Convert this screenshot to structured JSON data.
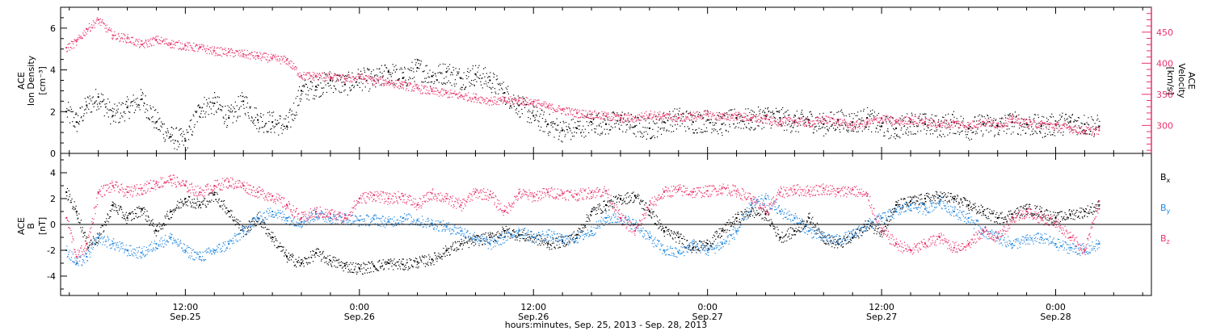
{
  "x_axis": {
    "title": "hours:minutes, Sep. 25, 2013 - Sep. 28, 2013",
    "ticks": [
      {
        "t": 12,
        "time": "12:00",
        "date": "Sep.25"
      },
      {
        "t": 24,
        "time": "0:00",
        "date": "Sep.26"
      },
      {
        "t": 36,
        "time": "12:00",
        "date": "Sep.26"
      },
      {
        "t": 48,
        "time": "0:00",
        "date": "Sep.27"
      },
      {
        "t": 60,
        "time": "12:00",
        "date": "Sep.27"
      },
      {
        "t": 72,
        "time": "0:00",
        "date": "Sep.28"
      }
    ],
    "range_hours": [
      3.4,
      78.6
    ]
  },
  "panel1": {
    "left_label_1": "ACE",
    "left_label_2": "Ion Density",
    "left_unit": "[cm⁻³]",
    "right_label_1": "ACE",
    "right_label_2": "Velocity",
    "right_unit": "[km/s]",
    "left_ticks": [
      "0",
      "2",
      "4",
      "6"
    ],
    "right_ticks": [
      "300",
      "350",
      "400",
      "450"
    ]
  },
  "panel2": {
    "label_1": "ACE",
    "label_2": "B",
    "unit": "[nT]",
    "ticks": [
      "-4",
      "-2",
      "0",
      "2",
      "4"
    ],
    "legend": [
      "Bx",
      "By",
      "Bz"
    ]
  },
  "colors": {
    "density": "#000000",
    "velocity": "#e8336a",
    "bx": "#000000",
    "by": "#1f86e0",
    "bz": "#e8336a",
    "axis": "#000000"
  },
  "chart_data": [
    {
      "type": "scatter",
      "title": "",
      "x_unit": "hours since 2013-09-25 00:00",
      "series": [
        {
          "name": "Ion Density",
          "axis": "left",
          "x": [
            3.8,
            4.5,
            5.2,
            6.0,
            7.0,
            8.0,
            9.0,
            10.0,
            11.0,
            12.0,
            13.0,
            14.0,
            15.0,
            16.0,
            17.0,
            18.0,
            19.0,
            20.0,
            21.0,
            22.0,
            23.0,
            24.0,
            25.0,
            26.0,
            27.0,
            28.0,
            29.0,
            30.0,
            31.0,
            32.0,
            33.0,
            34.0,
            35.0,
            36.0,
            37.0,
            38.0,
            39.0,
            40.0,
            41.0,
            42.0,
            43.0,
            44.0,
            45.0,
            46.0,
            47.0,
            48.0,
            49.0,
            50.0,
            51.0,
            52.0,
            53.0,
            54.0,
            55.0,
            56.0,
            57.0,
            58.0,
            59.0,
            60.0,
            61.0,
            62.0,
            63.0,
            64.0,
            65.0,
            66.0,
            67.0,
            68.0,
            69.0,
            70.0,
            71.0,
            72.0,
            73.0,
            74.0,
            75.0
          ],
          "y": [
            2.0,
            1.5,
            2.3,
            2.7,
            1.8,
            2.2,
            2.6,
            1.5,
            0.8,
            0.6,
            2.2,
            2.4,
            1.7,
            2.5,
            1.6,
            1.5,
            1.3,
            3.0,
            3.2,
            3.5,
            3.3,
            3.6,
            3.5,
            3.9,
            3.6,
            4.1,
            3.7,
            3.9,
            3.6,
            3.8,
            3.5,
            2.9,
            2.3,
            1.8,
            1.4,
            1.1,
            1.2,
            1.5,
            1.4,
            1.6,
            1.3,
            1.2,
            1.5,
            1.7,
            1.5,
            1.6,
            1.4,
            1.7,
            1.6,
            1.8,
            1.7,
            1.5,
            1.6,
            1.4,
            1.6,
            1.5,
            1.7,
            1.3,
            1.2,
            1.5,
            1.4,
            1.3,
            1.5,
            1.2,
            1.4,
            1.3,
            1.5,
            1.4,
            1.3,
            1.4,
            1.5,
            1.4,
            1.3
          ]
        },
        {
          "name": "Velocity",
          "axis": "right",
          "x": [
            3.8,
            4.5,
            5.2,
            6.0,
            7.0,
            8.0,
            9.0,
            10.0,
            11.0,
            12.0,
            13.0,
            14.0,
            15.0,
            16.0,
            17.0,
            18.0,
            19.0,
            20.0,
            21.0,
            22.0,
            23.0,
            24.0,
            25.0,
            26.0,
            27.0,
            28.0,
            29.0,
            30.0,
            31.0,
            32.0,
            33.0,
            34.0,
            35.0,
            36.0,
            37.0,
            38.0,
            39.0,
            40.0,
            41.0,
            42.0,
            43.0,
            44.0,
            45.0,
            46.0,
            47.0,
            48.0,
            49.0,
            50.0,
            51.0,
            52.0,
            53.0,
            54.0,
            55.0,
            56.0,
            57.0,
            58.0,
            59.0,
            60.0,
            61.0,
            62.0,
            63.0,
            64.0,
            65.0,
            66.0,
            67.0,
            68.0,
            69.0,
            70.0,
            71.0,
            72.0,
            73.0,
            74.0,
            75.0
          ],
          "y": [
            425,
            435,
            455,
            470,
            445,
            440,
            430,
            438,
            432,
            428,
            425,
            420,
            418,
            415,
            412,
            408,
            405,
            380,
            380,
            378,
            375,
            378,
            372,
            370,
            365,
            360,
            355,
            352,
            348,
            345,
            340,
            340,
            340,
            338,
            330,
            325,
            320,
            318,
            315,
            312,
            312,
            318,
            315,
            312,
            316,
            318,
            314,
            316,
            312,
            310,
            306,
            308,
            304,
            310,
            306,
            300,
            305,
            312,
            306,
            310,
            306,
            302,
            304,
            300,
            306,
            302,
            310,
            304,
            302,
            300,
            296,
            292,
            292
          ]
        }
      ],
      "left_axis": {
        "label": "ACE Ion Density",
        "unit": "[cm⁻³]",
        "ylim": [
          0,
          7
        ]
      },
      "right_axis": {
        "label": "ACE Velocity",
        "unit": "[km/s]",
        "ylim": [
          255,
          490
        ]
      }
    },
    {
      "type": "scatter",
      "title": "",
      "x_unit": "hours since 2013-09-25 00:00",
      "ylabel": "ACE B [nT]",
      "ylim": [
        -5.5,
        5.5
      ],
      "series": [
        {
          "name": "Bx",
          "x": [
            3.8,
            4.5,
            5.2,
            6.0,
            7.0,
            8.0,
            9.0,
            10.0,
            11.0,
            12.0,
            13.0,
            14.0,
            15.0,
            16.0,
            17.0,
            18.0,
            19.0,
            20.0,
            21.0,
            22.0,
            23.0,
            24.0,
            25.0,
            26.0,
            27.0,
            28.0,
            29.0,
            30.0,
            31.0,
            32.0,
            33.0,
            34.0,
            35.0,
            36.0,
            37.0,
            38.0,
            39.0,
            40.0,
            41.0,
            42.0,
            43.0,
            44.0,
            45.0,
            46.0,
            47.0,
            48.0,
            49.0,
            50.0,
            51.0,
            52.0,
            53.0,
            54.0,
            55.0,
            56.0,
            57.0,
            58.0,
            59.0,
            60.0,
            61.0,
            62.0,
            63.0,
            64.0,
            65.0,
            66.0,
            67.0,
            68.0,
            69.0,
            70.0,
            71.0,
            72.0,
            73.0,
            74.0,
            75.0
          ],
          "y": [
            2.5,
            1.0,
            -1.5,
            -1.0,
            1.5,
            0.5,
            1.2,
            -0.5,
            1.0,
            2.0,
            1.5,
            2.3,
            1.0,
            -0.5,
            0.5,
            -1.0,
            -2.5,
            -3.0,
            -2.2,
            -2.8,
            -3.2,
            -3.4,
            -3.2,
            -3.0,
            -3.1,
            -2.9,
            -2.7,
            -2.0,
            -1.5,
            -1.2,
            -1.0,
            -0.5,
            -0.8,
            -1.0,
            -1.5,
            -1.3,
            -0.8,
            1.0,
            1.5,
            2.0,
            2.2,
            1.0,
            -0.5,
            -1.0,
            -1.8,
            -1.5,
            -0.5,
            0.5,
            1.0,
            0.8,
            -1.0,
            -0.5,
            0.5,
            -1.0,
            -1.5,
            -1.0,
            0.0,
            -0.5,
            1.5,
            1.8,
            2.0,
            2.2,
            2.0,
            1.5,
            1.0,
            0.5,
            0.8,
            1.2,
            1.0,
            0.5,
            0.8,
            1.0,
            1.5
          ]
        },
        {
          "name": "By",
          "x": [
            3.8,
            4.5,
            5.2,
            6.0,
            7.0,
            8.0,
            9.0,
            10.0,
            11.0,
            12.0,
            13.0,
            14.0,
            15.0,
            16.0,
            17.0,
            18.0,
            19.0,
            20.0,
            21.0,
            22.0,
            23.0,
            24.0,
            25.0,
            26.0,
            27.0,
            28.0,
            29.0,
            30.0,
            31.0,
            32.0,
            33.0,
            34.0,
            35.0,
            36.0,
            37.0,
            38.0,
            39.0,
            40.0,
            41.0,
            42.0,
            43.0,
            44.0,
            45.0,
            46.0,
            47.0,
            48.0,
            49.0,
            50.0,
            51.0,
            52.0,
            53.0,
            54.0,
            55.0,
            56.0,
            57.0,
            58.0,
            59.0,
            60.0,
            61.0,
            62.0,
            63.0,
            64.0,
            65.0,
            66.0,
            67.0,
            68.0,
            69.0,
            70.0,
            71.0,
            72.0,
            73.0,
            74.0,
            75.0
          ],
          "y": [
            -2.0,
            -3.0,
            -2.5,
            -1.0,
            -1.5,
            -2.0,
            -2.2,
            -1.5,
            -1.0,
            -2.0,
            -2.5,
            -2.0,
            -1.5,
            -0.5,
            0.5,
            1.0,
            0.5,
            0.2,
            0.8,
            0.5,
            0.5,
            0.3,
            0.4,
            0.2,
            0.5,
            0.3,
            0.1,
            -0.2,
            -0.5,
            -1.0,
            -1.5,
            -1.0,
            -0.5,
            -1.0,
            -0.8,
            -1.2,
            -1.0,
            -0.5,
            0.5,
            0.5,
            0.0,
            -1.0,
            -2.0,
            -2.2,
            -1.5,
            -2.0,
            -1.5,
            -0.5,
            1.5,
            2.0,
            1.0,
            0.5,
            -0.5,
            -1.0,
            -1.2,
            -0.8,
            0.0,
            0.5,
            1.0,
            1.5,
            1.2,
            1.8,
            1.0,
            0.5,
            -0.5,
            -1.0,
            -1.5,
            -1.2,
            -1.0,
            -1.5,
            -1.8,
            -2.0,
            -1.5
          ]
        },
        {
          "name": "Bz",
          "x": [
            3.8,
            4.5,
            5.2,
            6.0,
            7.0,
            8.0,
            9.0,
            10.0,
            11.0,
            12.0,
            13.0,
            14.0,
            15.0,
            16.0,
            17.0,
            18.0,
            19.0,
            20.0,
            21.0,
            22.0,
            23.0,
            24.0,
            25.0,
            26.0,
            27.0,
            28.0,
            29.0,
            30.0,
            31.0,
            32.0,
            33.0,
            34.0,
            35.0,
            36.0,
            37.0,
            38.0,
            39.0,
            40.0,
            41.0,
            42.0,
            43.0,
            44.0,
            45.0,
            46.0,
            47.0,
            48.0,
            49.0,
            50.0,
            51.0,
            52.0,
            53.0,
            54.0,
            55.0,
            56.0,
            57.0,
            58.0,
            59.0,
            60.0,
            61.0,
            62.0,
            63.0,
            64.0,
            65.0,
            66.0,
            67.0,
            68.0,
            69.0,
            70.0,
            71.0,
            72.0,
            73.0,
            74.0,
            75.0
          ],
          "y": [
            0.5,
            -2.5,
            -1.5,
            2.5,
            3.0,
            2.5,
            2.8,
            3.2,
            3.5,
            3.0,
            2.5,
            3.0,
            3.3,
            3.0,
            2.5,
            2.2,
            1.5,
            0.5,
            1.0,
            0.8,
            0.5,
            2.0,
            2.3,
            2.0,
            2.2,
            1.5,
            2.4,
            2.0,
            1.5,
            2.5,
            2.3,
            1.0,
            2.4,
            2.2,
            2.5,
            2.4,
            2.3,
            2.5,
            2.6,
            0.5,
            -0.5,
            1.5,
            2.5,
            2.7,
            2.5,
            2.6,
            2.8,
            2.6,
            2.0,
            1.0,
            2.5,
            2.7,
            2.6,
            2.8,
            2.5,
            2.7,
            2.2,
            -0.5,
            -1.5,
            -2.0,
            -1.5,
            -1.0,
            -1.8,
            -1.5,
            -0.5,
            -1.0,
            0.5,
            1.0,
            0.5,
            0.2,
            -1.0,
            -2.0,
            1.8
          ]
        }
      ]
    }
  ]
}
